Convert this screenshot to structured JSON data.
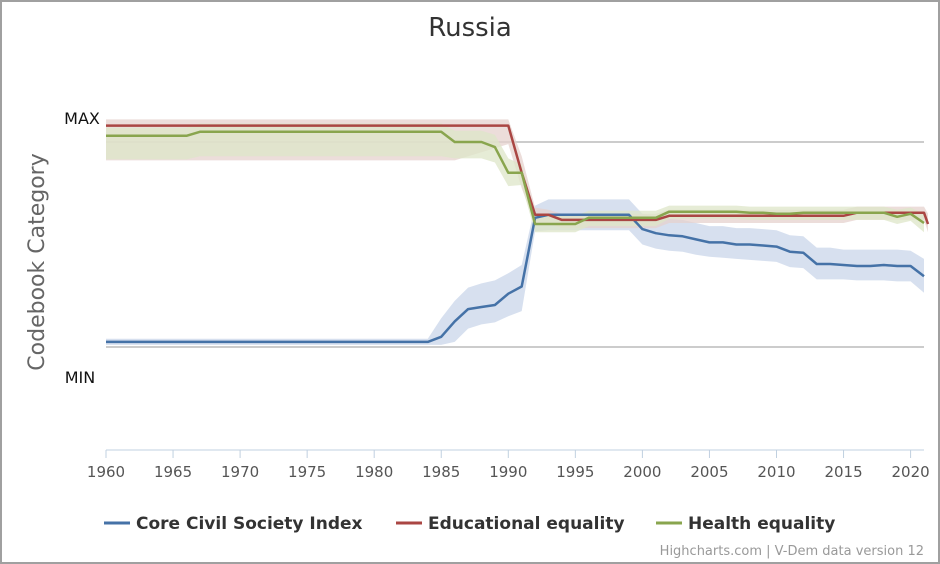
{
  "chart_data": {
    "type": "line",
    "title": "Russia",
    "ylabel": "Codebook Category",
    "y_category_labels": [
      "MAX",
      "MIN"
    ],
    "xlim": [
      1960,
      2021
    ],
    "x_ticks": [
      1960,
      1965,
      1970,
      1975,
      1980,
      1985,
      1990,
      1995,
      2000,
      2005,
      2010,
      2015,
      2020
    ],
    "grid": "horizontal reference lines at MAX and MIN",
    "legend_position": "bottom",
    "credits": "Highcharts.com | V-Dem data version 12",
    "series": [
      {
        "name": "Core Civil Society Index",
        "color": "#4572a7",
        "band_color": "#c9d6ea",
        "points": [
          [
            1960,
            0.05
          ],
          [
            1984,
            0.05
          ],
          [
            1985,
            0.1
          ],
          [
            1986,
            0.25
          ],
          [
            1987,
            0.37
          ],
          [
            1988,
            0.39
          ],
          [
            1989,
            0.41
          ],
          [
            1990,
            0.52
          ],
          [
            1991,
            0.59
          ],
          [
            1992,
            1.26
          ],
          [
            1993,
            1.29
          ],
          [
            1999,
            1.29
          ],
          [
            2000,
            1.15
          ],
          [
            2001,
            1.11
          ],
          [
            2002,
            1.09
          ],
          [
            2003,
            1.08
          ],
          [
            2004,
            1.05
          ],
          [
            2005,
            1.02
          ],
          [
            2006,
            1.02
          ],
          [
            2007,
            1.0
          ],
          [
            2008,
            1.0
          ],
          [
            2009,
            0.99
          ],
          [
            2010,
            0.98
          ],
          [
            2011,
            0.93
          ],
          [
            2012,
            0.92
          ],
          [
            2013,
            0.81
          ],
          [
            2014,
            0.81
          ],
          [
            2015,
            0.8
          ],
          [
            2016,
            0.79
          ],
          [
            2017,
            0.79
          ],
          [
            2018,
            0.8
          ],
          [
            2019,
            0.79
          ],
          [
            2020,
            0.79
          ],
          [
            2021,
            0.69
          ]
        ],
        "upper": [
          [
            1960,
            0.08
          ],
          [
            1984,
            0.08
          ],
          [
            1985,
            0.28
          ],
          [
            1986,
            0.45
          ],
          [
            1987,
            0.58
          ],
          [
            1988,
            0.62
          ],
          [
            1989,
            0.65
          ],
          [
            1990,
            0.72
          ],
          [
            1991,
            0.8
          ],
          [
            1992,
            1.38
          ],
          [
            1993,
            1.44
          ],
          [
            1999,
            1.44
          ],
          [
            2000,
            1.3
          ],
          [
            2001,
            1.27
          ],
          [
            2002,
            1.25
          ],
          [
            2003,
            1.24
          ],
          [
            2004,
            1.21
          ],
          [
            2005,
            1.18
          ],
          [
            2006,
            1.18
          ],
          [
            2007,
            1.16
          ],
          [
            2008,
            1.16
          ],
          [
            2009,
            1.15
          ],
          [
            2010,
            1.14
          ],
          [
            2011,
            1.09
          ],
          [
            2012,
            1.08
          ],
          [
            2013,
            0.97
          ],
          [
            2014,
            0.97
          ],
          [
            2015,
            0.95
          ],
          [
            2016,
            0.95
          ],
          [
            2017,
            0.95
          ],
          [
            2018,
            0.95
          ],
          [
            2019,
            0.95
          ],
          [
            2020,
            0.94
          ],
          [
            2021,
            0.86
          ]
        ],
        "lower": [
          [
            1960,
            0.02
          ],
          [
            1984,
            0.02
          ],
          [
            1985,
            0.02
          ],
          [
            1986,
            0.05
          ],
          [
            1987,
            0.18
          ],
          [
            1988,
            0.22
          ],
          [
            1989,
            0.24
          ],
          [
            1990,
            0.3
          ],
          [
            1991,
            0.35
          ],
          [
            1992,
            1.13
          ],
          [
            1993,
            1.14
          ],
          [
            1999,
            1.14
          ],
          [
            2000,
            1.0
          ],
          [
            2001,
            0.96
          ],
          [
            2002,
            0.94
          ],
          [
            2003,
            0.93
          ],
          [
            2004,
            0.9
          ],
          [
            2005,
            0.88
          ],
          [
            2006,
            0.87
          ],
          [
            2007,
            0.86
          ],
          [
            2008,
            0.85
          ],
          [
            2009,
            0.84
          ],
          [
            2010,
            0.83
          ],
          [
            2011,
            0.78
          ],
          [
            2012,
            0.77
          ],
          [
            2013,
            0.66
          ],
          [
            2014,
            0.66
          ],
          [
            2015,
            0.66
          ],
          [
            2016,
            0.65
          ],
          [
            2017,
            0.65
          ],
          [
            2018,
            0.65
          ],
          [
            2019,
            0.64
          ],
          [
            2020,
            0.64
          ],
          [
            2021,
            0.53
          ]
        ]
      },
      {
        "name": "Educational equality",
        "color": "#aa4643",
        "band_color": "#e6d2ce",
        "points": [
          [
            1960,
            2.16
          ],
          [
            1990,
            2.16
          ],
          [
            1991,
            1.7
          ],
          [
            1992,
            1.29
          ],
          [
            1993,
            1.29
          ],
          [
            1994,
            1.24
          ],
          [
            2001,
            1.24
          ],
          [
            2002,
            1.28
          ],
          [
            2014,
            1.28
          ],
          [
            2015,
            1.28
          ],
          [
            2016,
            1.31
          ],
          [
            2021,
            1.31
          ],
          [
            2021.3,
            1.2
          ]
        ],
        "upper": [
          [
            1960,
            2.22
          ],
          [
            1990,
            2.22
          ],
          [
            1991,
            1.86
          ],
          [
            1992,
            1.36
          ],
          [
            1993,
            1.34
          ],
          [
            1994,
            1.3
          ],
          [
            2001,
            1.3
          ],
          [
            2002,
            1.34
          ],
          [
            2015,
            1.34
          ],
          [
            2016,
            1.37
          ],
          [
            2021,
            1.37
          ],
          [
            2021.3,
            1.3
          ]
        ],
        "lower": [
          [
            1960,
            1.82
          ],
          [
            1986,
            1.82
          ],
          [
            1990,
            1.98
          ],
          [
            1991,
            1.55
          ],
          [
            1992,
            1.2
          ],
          [
            1993,
            1.2
          ],
          [
            1994,
            1.16
          ],
          [
            2001,
            1.16
          ],
          [
            2002,
            1.21
          ],
          [
            2015,
            1.21
          ],
          [
            2016,
            1.24
          ],
          [
            2021,
            1.24
          ],
          [
            2021.3,
            1.12
          ]
        ]
      },
      {
        "name": "Health equality",
        "color": "#89a54e",
        "band_color": "#dde6c8",
        "points": [
          [
            1960,
            2.06
          ],
          [
            1966,
            2.06
          ],
          [
            1967,
            2.1
          ],
          [
            1985,
            2.1
          ],
          [
            1986,
            2.0
          ],
          [
            1988,
            2.0
          ],
          [
            1989,
            1.95
          ],
          [
            1990,
            1.7
          ],
          [
            1991,
            1.7
          ],
          [
            1992,
            1.2
          ],
          [
            1995,
            1.2
          ],
          [
            1996,
            1.26
          ],
          [
            2001,
            1.26
          ],
          [
            2002,
            1.32
          ],
          [
            2007,
            1.32
          ],
          [
            2008,
            1.31
          ],
          [
            2009,
            1.31
          ],
          [
            2010,
            1.3
          ],
          [
            2011,
            1.3
          ],
          [
            2012,
            1.31
          ],
          [
            2017,
            1.31
          ],
          [
            2018,
            1.31
          ],
          [
            2019,
            1.27
          ],
          [
            2020,
            1.3
          ],
          [
            2021,
            1.21
          ]
        ],
        "upper": [
          [
            1960,
            2.14
          ],
          [
            1966,
            2.14
          ],
          [
            1967,
            2.18
          ],
          [
            1985,
            2.18
          ],
          [
            1986,
            2.11
          ],
          [
            1988,
            2.11
          ],
          [
            1989,
            2.07
          ],
          [
            1990,
            1.84
          ],
          [
            1991,
            1.78
          ],
          [
            1992,
            1.28
          ],
          [
            1995,
            1.28
          ],
          [
            1996,
            1.33
          ],
          [
            2001,
            1.33
          ],
          [
            2002,
            1.38
          ],
          [
            2007,
            1.38
          ],
          [
            2008,
            1.37
          ],
          [
            2012,
            1.37
          ],
          [
            2017,
            1.37
          ],
          [
            2018,
            1.37
          ],
          [
            2019,
            1.34
          ],
          [
            2020,
            1.36
          ],
          [
            2021,
            1.3
          ]
        ],
        "lower": [
          [
            1960,
            1.83
          ],
          [
            1966,
            1.83
          ],
          [
            1967,
            1.86
          ],
          [
            1985,
            1.86
          ],
          [
            1986,
            1.84
          ],
          [
            1988,
            1.84
          ],
          [
            1989,
            1.8
          ],
          [
            1990,
            1.57
          ],
          [
            1991,
            1.58
          ],
          [
            1992,
            1.12
          ],
          [
            1995,
            1.12
          ],
          [
            1996,
            1.18
          ],
          [
            2001,
            1.18
          ],
          [
            2002,
            1.25
          ],
          [
            2007,
            1.25
          ],
          [
            2008,
            1.24
          ],
          [
            2012,
            1.24
          ],
          [
            2017,
            1.24
          ],
          [
            2018,
            1.24
          ],
          [
            2019,
            1.2
          ],
          [
            2020,
            1.23
          ],
          [
            2021,
            1.12
          ]
        ]
      }
    ]
  }
}
